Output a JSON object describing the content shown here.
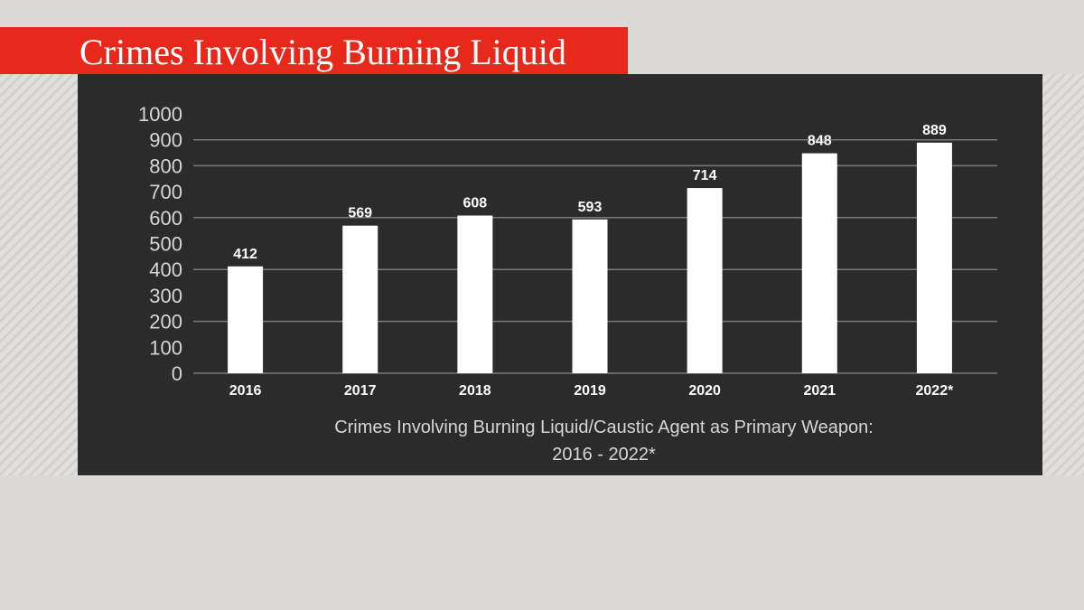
{
  "header": {
    "title": "Crimes Involving Burning Liquid"
  },
  "colors": {
    "accent": "#e8281b",
    "panel": "#2b2b2b",
    "bar": "#ffffff",
    "grid": "#7a7a7a",
    "text": "#d6d6d6"
  },
  "chart_data": {
    "type": "bar",
    "title": "Crimes Involving Burning Liquid",
    "categories": [
      "2016",
      "2017",
      "2018",
      "2019",
      "2020",
      "2021",
      "2022*"
    ],
    "values": [
      412,
      569,
      608,
      593,
      714,
      848,
      889
    ],
    "data_labels": [
      "412",
      "569",
      "608",
      "593",
      "714",
      "848",
      "889"
    ],
    "y_ticks": [
      "0",
      "100",
      "200",
      "300",
      "400",
      "500",
      "600",
      "700",
      "800",
      "900",
      "1000"
    ],
    "ylim": [
      0,
      1000
    ],
    "xlabel_line1": "Crimes Involving Burning Liquid/Caustic Agent as Primary Weapon:",
    "xlabel_line2": "2016 - 2022*",
    "ylabel": "",
    "grid": true,
    "legend": "none"
  }
}
